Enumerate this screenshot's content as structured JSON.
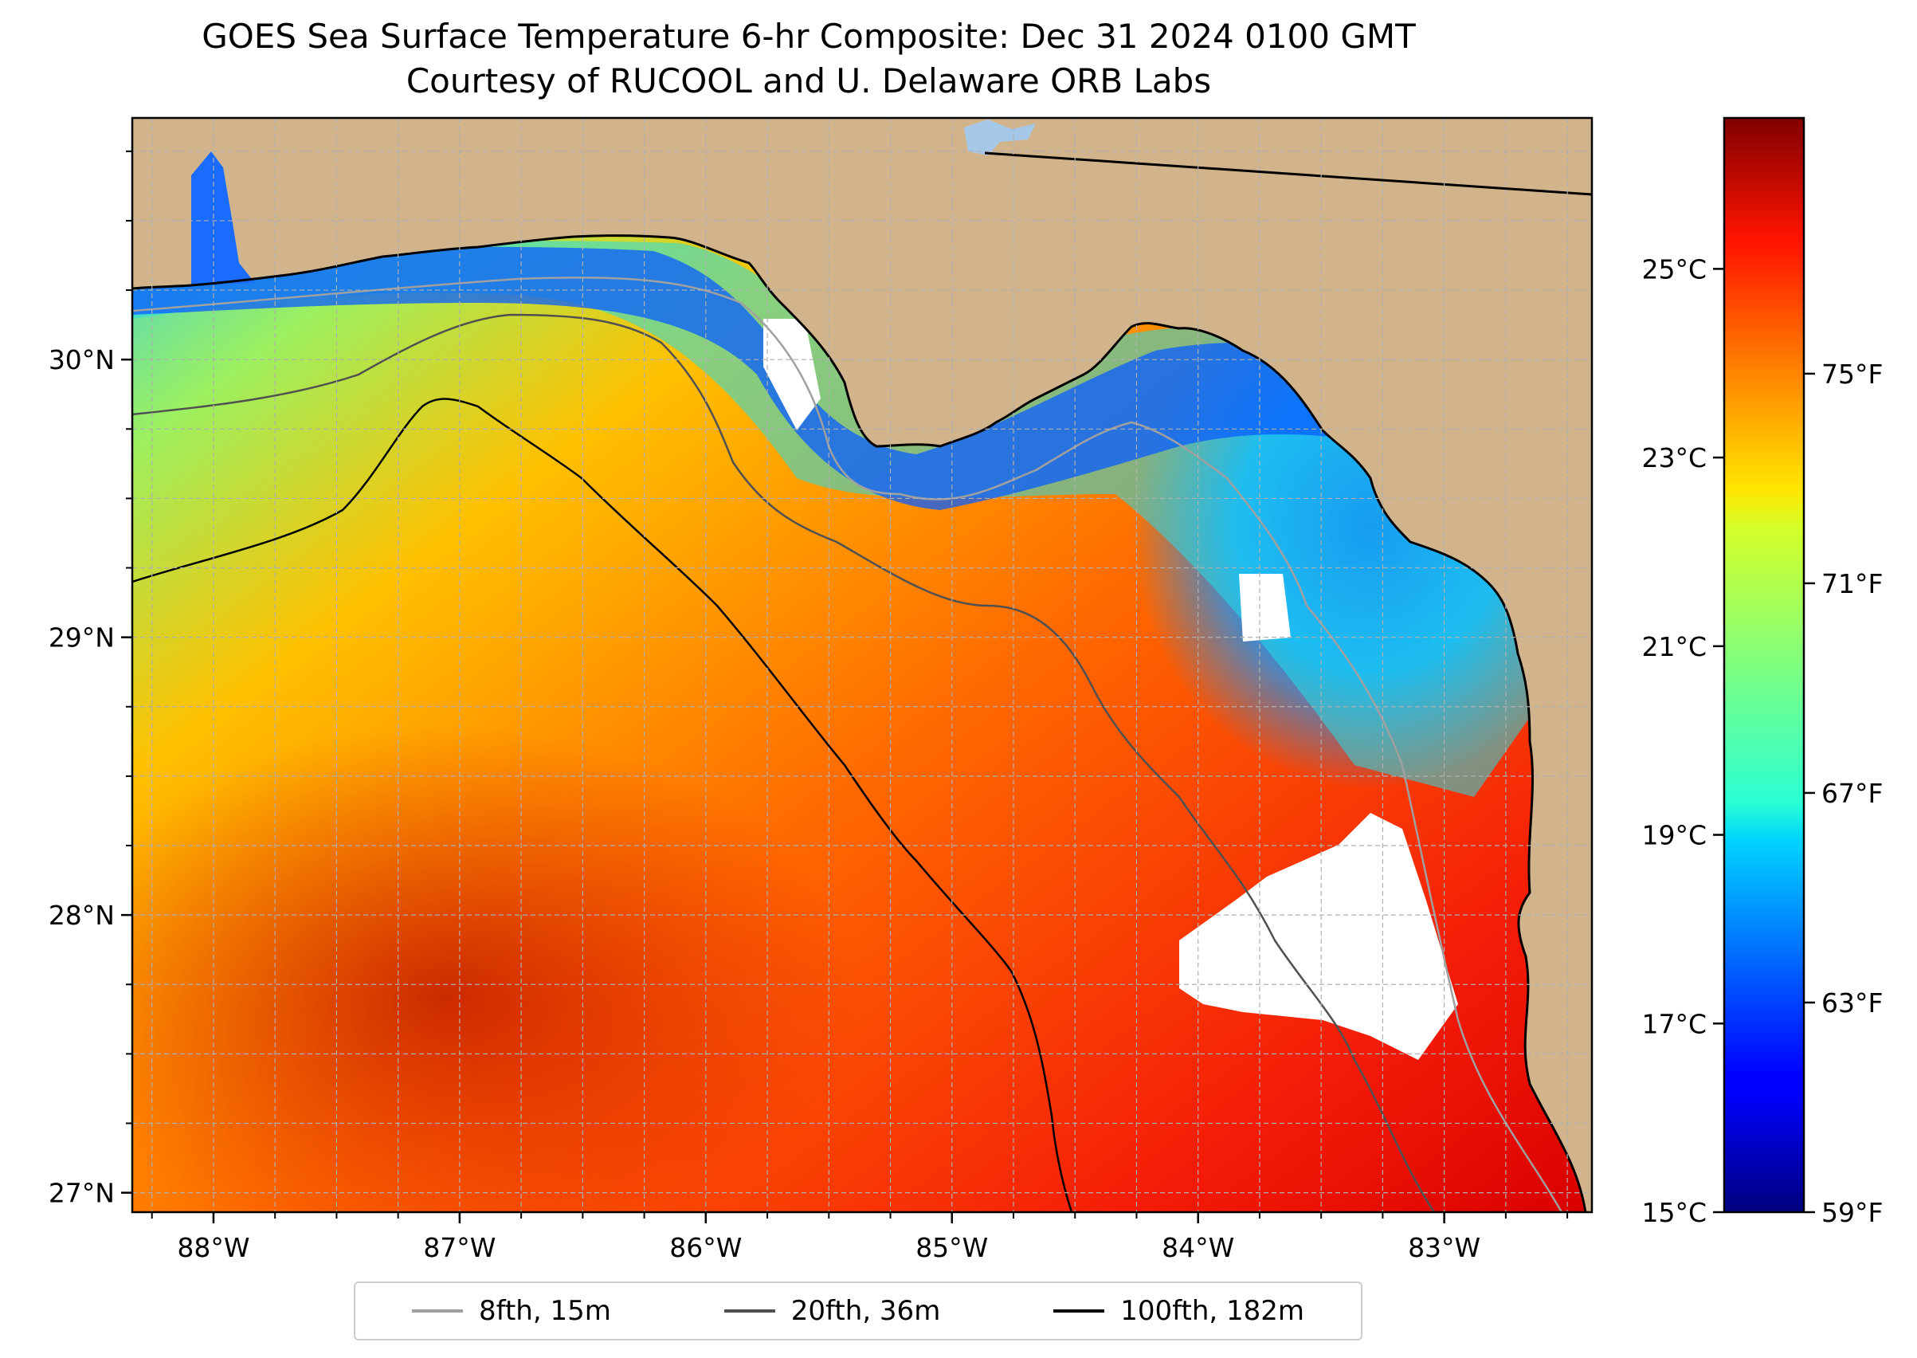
{
  "title": {
    "line1": "GOES Sea Surface Temperature 6-hr Composite: Dec 31 2024 0100 GMT",
    "line2": "Courtesy of RUCOOL and U. Delaware ORB Labs"
  },
  "map": {
    "lon_range": [
      -88.33,
      -82.4
    ],
    "lat_range": [
      26.93,
      30.87
    ],
    "lon_ticks": [
      {
        "value": -88,
        "label": "88°W"
      },
      {
        "value": -87,
        "label": "87°W"
      },
      {
        "value": -86,
        "label": "86°W"
      },
      {
        "value": -85,
        "label": "85°W"
      },
      {
        "value": -84,
        "label": "84°W"
      },
      {
        "value": -83,
        "label": "83°W"
      }
    ],
    "lat_ticks": [
      {
        "value": 27,
        "label": "27°N"
      },
      {
        "value": 28,
        "label": "28°N"
      },
      {
        "value": 29,
        "label": "29°N"
      },
      {
        "value": 30,
        "label": "30°N"
      }
    ],
    "minor_grid_step_deg": 0.25,
    "colors": {
      "land": "#d2b48c",
      "no_data": "#ffffff",
      "gridline": "#b0b0b0",
      "coastline": "#000000",
      "lake": "#a6c8e8"
    }
  },
  "colorbar": {
    "colormap": "jet",
    "celsius_range": [
      15,
      26.6
    ],
    "celsius_ticks": [
      {
        "value": 15,
        "label": "15°C"
      },
      {
        "value": 17,
        "label": "17°C"
      },
      {
        "value": 19,
        "label": "19°C"
      },
      {
        "value": 21,
        "label": "21°C"
      },
      {
        "value": 23,
        "label": "23°C"
      },
      {
        "value": 25,
        "label": "25°C"
      }
    ],
    "fahrenheit_ticks": [
      {
        "value": 59,
        "label": "59°F"
      },
      {
        "value": 63,
        "label": "63°F"
      },
      {
        "value": 67,
        "label": "67°F"
      },
      {
        "value": 71,
        "label": "71°F"
      },
      {
        "value": 75,
        "label": "75°F"
      }
    ]
  },
  "legend": {
    "entries": [
      {
        "label": "8fth, 15m",
        "color": "#a0a0a0"
      },
      {
        "label": "20fth, 36m",
        "color": "#505050"
      },
      {
        "label": "100fth, 182m",
        "color": "#000000"
      }
    ]
  }
}
